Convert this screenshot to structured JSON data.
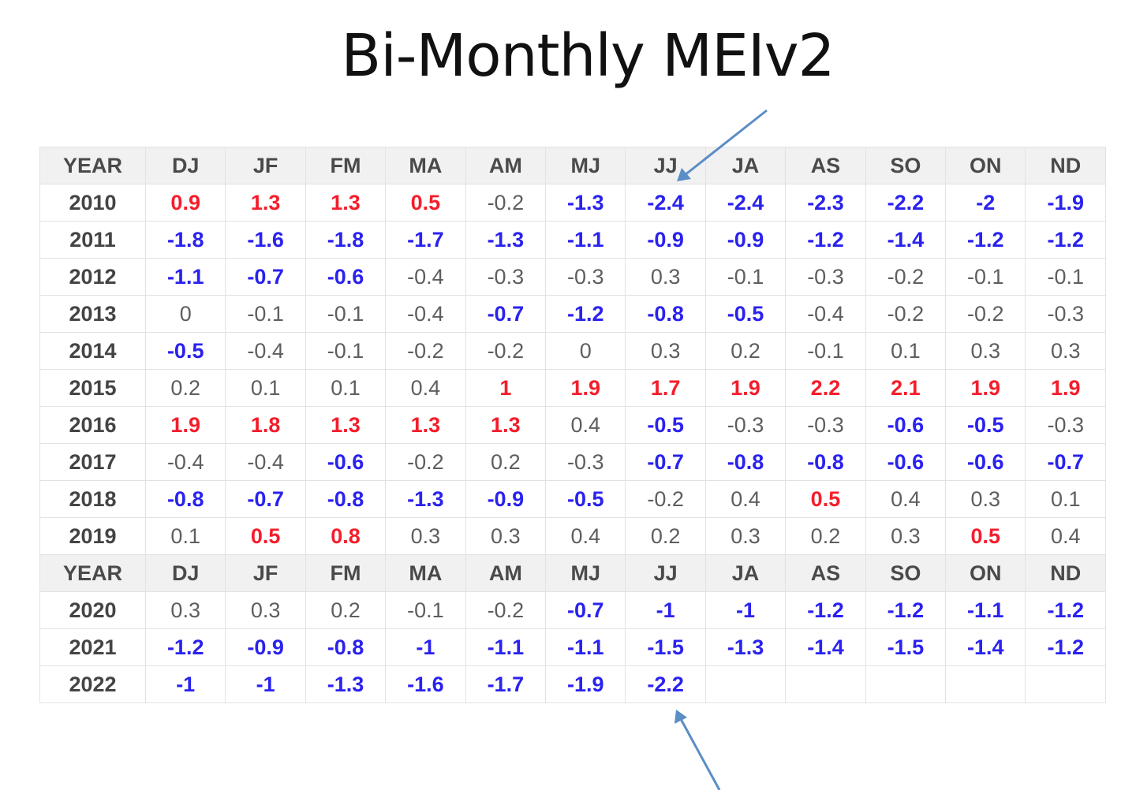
{
  "title": "Bi-Monthly MEIv2",
  "header": [
    "YEAR",
    "DJ",
    "JF",
    "FM",
    "MA",
    "AM",
    "MJ",
    "JJ",
    "JA",
    "AS",
    "SO",
    "ON",
    "ND"
  ],
  "colors": {
    "positive": "#f41d2b",
    "negative": "#2a22ee",
    "neutral": "#5e5e5e",
    "arrow": "#5b8dc6"
  },
  "rows": [
    {
      "year": "2010",
      "values": [
        "0.9",
        "1.3",
        "1.3",
        "0.5",
        "-0.2",
        "-1.3",
        "-2.4",
        "-2.4",
        "-2.3",
        "-2.2",
        "-2",
        "-1.9"
      ]
    },
    {
      "year": "2011",
      "values": [
        "-1.8",
        "-1.6",
        "-1.8",
        "-1.7",
        "-1.3",
        "-1.1",
        "-0.9",
        "-0.9",
        "-1.2",
        "-1.4",
        "-1.2",
        "-1.2"
      ]
    },
    {
      "year": "2012",
      "values": [
        "-1.1",
        "-0.7",
        "-0.6",
        "-0.4",
        "-0.3",
        "-0.3",
        "0.3",
        "-0.1",
        "-0.3",
        "-0.2",
        "-0.1",
        "-0.1"
      ]
    },
    {
      "year": "2013",
      "values": [
        "0",
        "-0.1",
        "-0.1",
        "-0.4",
        "-0.7",
        "-1.2",
        "-0.8",
        "-0.5",
        "-0.4",
        "-0.2",
        "-0.2",
        "-0.3"
      ]
    },
    {
      "year": "2014",
      "values": [
        "-0.5",
        "-0.4",
        "-0.1",
        "-0.2",
        "-0.2",
        "0",
        "0.3",
        "0.2",
        "-0.1",
        "0.1",
        "0.3",
        "0.3"
      ]
    },
    {
      "year": "2015",
      "values": [
        "0.2",
        "0.1",
        "0.1",
        "0.4",
        "1",
        "1.9",
        "1.7",
        "1.9",
        "2.2",
        "2.1",
        "1.9",
        "1.9"
      ]
    },
    {
      "year": "2016",
      "values": [
        "1.9",
        "1.8",
        "1.3",
        "1.3",
        "1.3",
        "0.4",
        "-0.5",
        "-0.3",
        "-0.3",
        "-0.6",
        "-0.5",
        "-0.3"
      ]
    },
    {
      "year": "2017",
      "values": [
        "-0.4",
        "-0.4",
        "-0.6",
        "-0.2",
        "0.2",
        "-0.3",
        "-0.7",
        "-0.8",
        "-0.8",
        "-0.6",
        "-0.6",
        "-0.7"
      ]
    },
    {
      "year": "2018",
      "values": [
        "-0.8",
        "-0.7",
        "-0.8",
        "-1.3",
        "-0.9",
        "-0.5",
        "-0.2",
        "0.4",
        "0.5",
        "0.4",
        "0.3",
        "0.1"
      ]
    },
    {
      "year": "2019",
      "values": [
        "0.1",
        "0.5",
        "0.8",
        "0.3",
        "0.3",
        "0.4",
        "0.2",
        "0.3",
        "0.2",
        "0.3",
        "0.5",
        "0.4"
      ]
    },
    {
      "header": true
    },
    {
      "year": "2020",
      "values": [
        "0.3",
        "0.3",
        "0.2",
        "-0.1",
        "-0.2",
        "-0.7",
        "-1",
        "-1",
        "-1.2",
        "-1.2",
        "-1.1",
        "-1.2"
      ]
    },
    {
      "year": "2021",
      "values": [
        "-1.2",
        "-0.9",
        "-0.8",
        "-1",
        "-1.1",
        "-1.1",
        "-1.5",
        "-1.3",
        "-1.4",
        "-1.5",
        "-1.4",
        "-1.2"
      ]
    },
    {
      "year": "2022",
      "values": [
        "-1",
        "-1",
        "-1.3",
        "-1.6",
        "-1.7",
        "-1.9",
        "-2.2",
        "",
        "",
        "",
        "",
        ""
      ]
    }
  ]
}
